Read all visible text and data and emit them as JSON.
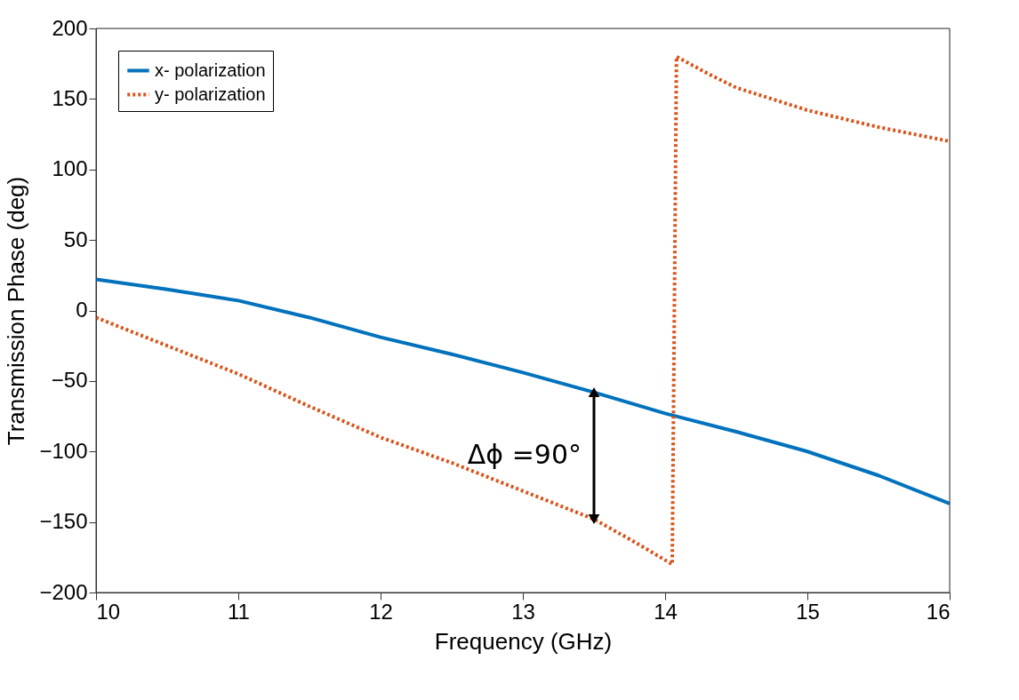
{
  "chart_data": {
    "type": "line",
    "xlabel": "Frequency (GHz)",
    "ylabel": "Transmission Phase (deg)",
    "xlim": [
      10,
      16
    ],
    "xticks": [
      10,
      11,
      12,
      13,
      14,
      15,
      16
    ],
    "ylim": [
      -200,
      200
    ],
    "yticks": [
      -200,
      -150,
      -100,
      -50,
      0,
      50,
      100,
      150,
      200
    ],
    "grid": false,
    "legend": "top left",
    "series": [
      {
        "name": "x- polarization",
        "color": "#0072bd",
        "line_style": "solid",
        "x": [
          10,
          10.5,
          11,
          11.5,
          12,
          12.5,
          13,
          13.5,
          14,
          14.5,
          15,
          15.5,
          16
        ],
        "values": [
          22,
          15,
          7,
          -5,
          -19,
          -31,
          -44,
          -58,
          -73,
          -86,
          -100,
          -117,
          -137
        ]
      },
      {
        "name": "y- polarization",
        "color": "#d95319",
        "line_style": "dotted",
        "x": [
          10,
          10.5,
          11,
          11.5,
          12,
          12.5,
          13,
          13.5,
          13.8,
          14.05,
          14.08,
          14.3,
          14.5,
          15,
          15.5,
          16
        ],
        "values": [
          -5,
          -25,
          -45,
          -68,
          -90,
          -108,
          -128,
          -148,
          -165,
          -180,
          180,
          168,
          158,
          142,
          130,
          120
        ]
      }
    ],
    "annotations": [
      "Δϕ =90°"
    ]
  }
}
